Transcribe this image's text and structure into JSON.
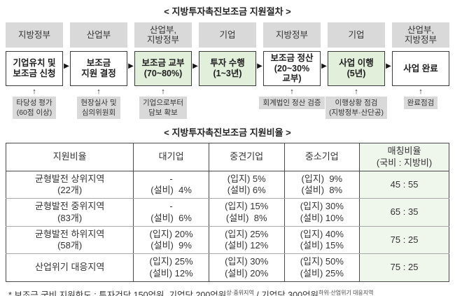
{
  "icons": {
    "arrow_right": "▶",
    "arrow_up": "↑"
  },
  "colors": {
    "gray_label": "#d9d9d9",
    "green_box": "#e2efda",
    "tint_column": "#eff6ec"
  },
  "procedure": {
    "title": "< 지방투자촉진보조금 지원절차 >",
    "columns": [
      {
        "actor": "지방정부",
        "box": "기업유치 및\n보조금 신청",
        "note": "타당성 평가\n(60점 이상)"
      },
      {
        "actor": "산업부",
        "box": "보조금\n지원 결정",
        "note": "현장실사 및\n심의위원회"
      },
      {
        "actor": "산업부,\n지방정부",
        "box": "보조금 교부\n(70~80%)",
        "note": "기업으로부터\n담보 확보"
      },
      {
        "actor": "기업",
        "box": "투자 수행\n(1~3년)",
        "note": ""
      },
      {
        "actor": "지방정부",
        "box": "보조금 정산\n(20~30%\n교부)",
        "note": "회계법인 정산 검증"
      },
      {
        "actor": "기업",
        "box": "사업 이행\n(5년)",
        "note": "이행상황 점검\n(지방정부·산단공)"
      },
      {
        "actor": "산업부,\n지방정부",
        "box": "사업 완료",
        "note": "완료점검"
      }
    ]
  },
  "ratio_table": {
    "title": "< 지방투자촉진보조금 지원비율 >",
    "headers": [
      "지원비율",
      "대기업",
      "중견기업",
      "중소기업",
      "매칭비율\n(국비 : 지방비)"
    ],
    "rows": [
      {
        "region": "균형발전 상위지역\n(22개)",
        "large": "-\n(설비)  4%",
        "mid": "(입지) 5%\n(설비) 6%",
        "small": "(입지)  9%\n(설비)  8%",
        "ratio": "45 : 55"
      },
      {
        "region": "균형발전 중위지역\n(83개)",
        "large": "-\n(설비)  6%",
        "mid": "(입지) 15%\n(설비)  8%",
        "small": "(입지) 30%\n(설비) 10%",
        "ratio": "65 : 35"
      },
      {
        "region": "균형발전 하위지역\n(58개)",
        "large": "(입지) 20%\n(설비)  9%",
        "mid": "(입지) 25%\n(설비) 12%",
        "small": "(입지) 40%\n(설비) 15%",
        "ratio": "75 : 25"
      },
      {
        "region": "산업위기 대응지역",
        "large": "(입지) 25%\n(설비) 12%",
        "mid": "(입지) 30%\n(설비) 20%",
        "small": "(입지) 50%\n(설비) 25%",
        "ratio": "75 : 25"
      }
    ]
  },
  "footnote": {
    "prefix": "* 보조금 국비 지원한도 : 투자건당 150억원, 기업당 200억원",
    "sup1": "상·중위지역",
    "mid": " / 기업당 300억원",
    "sup2": "하위·산업위기 대응지역"
  }
}
